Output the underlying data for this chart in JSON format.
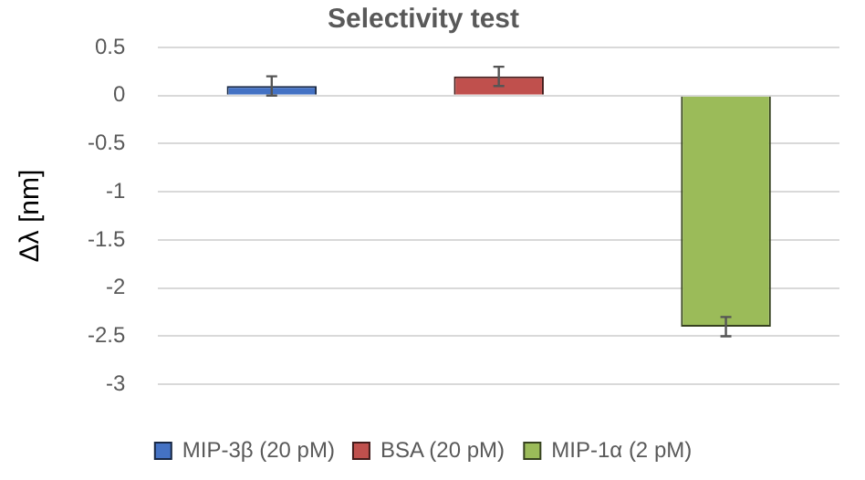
{
  "chart_data": {
    "type": "bar",
    "title": "Selectivity test",
    "ylabel": "Δλ [nm]",
    "categories": [
      null,
      null,
      null
    ],
    "series": [
      {
        "name": "MIP-3β (20 pM)",
        "color": "#4472c4",
        "values": [
          0.1,
          null,
          null
        ],
        "errors": [
          0.1,
          null,
          null
        ]
      },
      {
        "name": "BSA (20 pM)",
        "color": "#c0504d",
        "values": [
          null,
          0.2,
          null
        ],
        "errors": [
          null,
          0.1,
          null
        ]
      },
      {
        "name": "MIP-1α (2 pM)",
        "color": "#9bbb59",
        "values": [
          null,
          null,
          -2.4
        ],
        "errors": [
          null,
          null,
          0.1
        ]
      }
    ],
    "ylim": [
      -3,
      0.5
    ],
    "yticks": [
      -3,
      -2.5,
      -2,
      -1.5,
      -1,
      -0.5,
      0,
      0.5
    ],
    "grid": "y",
    "legend": "bottom"
  }
}
